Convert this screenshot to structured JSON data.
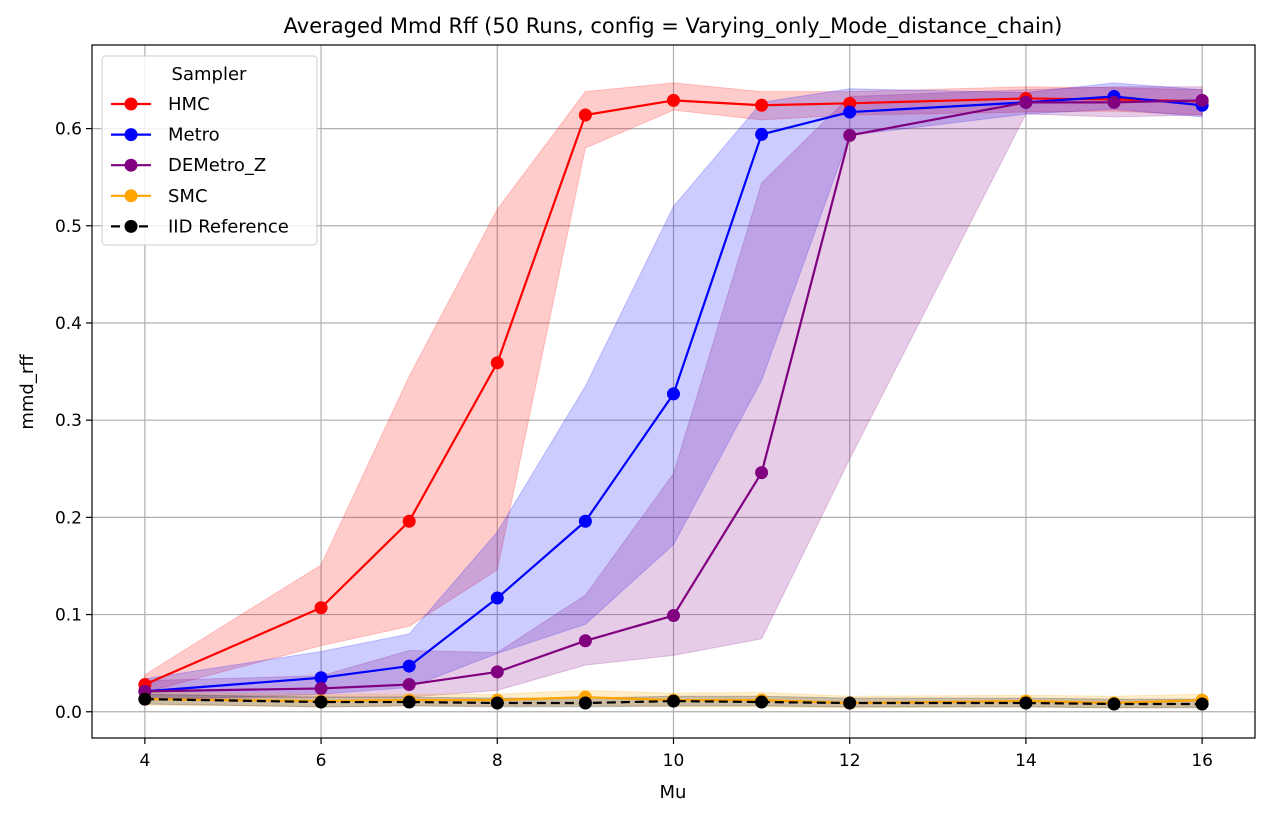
{
  "chart_data": {
    "type": "line",
    "title": "Averaged Mmd Rff (50 Runs, config = Varying_only_Mode_distance_chain)",
    "xlabel": "Mu",
    "ylabel": "mmd_rff",
    "xlim": [
      3.4,
      16.6
    ],
    "ylim": [
      -0.027,
      0.686
    ],
    "xticks": [
      4,
      6,
      8,
      10,
      12,
      14,
      16
    ],
    "yticks": [
      0.0,
      0.1,
      0.2,
      0.3,
      0.4,
      0.5,
      0.6
    ],
    "grid": true,
    "legend": {
      "title": "Sampler",
      "placement": "top-left"
    },
    "x": [
      4,
      6,
      7,
      8,
      9,
      10,
      11,
      12,
      14,
      15,
      16
    ],
    "series": [
      {
        "name": "HMC",
        "color": "#ff0000",
        "linestyle": "solid",
        "values": [
          0.028,
          0.107,
          0.196,
          0.359,
          0.614,
          0.629,
          0.624,
          0.626,
          0.631,
          0.63,
          0.628
        ],
        "band_low": [
          0.02,
          0.068,
          0.088,
          0.146,
          0.58,
          0.619,
          0.609,
          0.614,
          0.617,
          0.618,
          0.614
        ],
        "band_high": [
          0.038,
          0.151,
          0.345,
          0.517,
          0.638,
          0.647,
          0.638,
          0.638,
          0.643,
          0.642,
          0.64
        ]
      },
      {
        "name": "Metro",
        "color": "#0000ff",
        "linestyle": "solid",
        "values": [
          0.021,
          0.035,
          0.047,
          0.117,
          0.196,
          0.327,
          0.594,
          0.617,
          0.627,
          0.633,
          0.624
        ],
        "band_low": [
          0.012,
          0.018,
          0.025,
          0.06,
          0.09,
          0.172,
          0.341,
          0.593,
          0.615,
          0.62,
          0.612
        ],
        "band_high": [
          0.034,
          0.062,
          0.08,
          0.185,
          0.335,
          0.52,
          0.627,
          0.641,
          0.637,
          0.647,
          0.64
        ]
      },
      {
        "name": "DEMetro_Z",
        "color": "#800080",
        "linestyle": "solid",
        "values": [
          0.021,
          0.024,
          0.028,
          0.041,
          0.073,
          0.099,
          0.246,
          0.593,
          0.627,
          0.627,
          0.629
        ],
        "band_low": [
          0.013,
          0.015,
          0.015,
          0.022,
          0.048,
          0.058,
          0.075,
          0.26,
          0.615,
          0.612,
          0.614
        ],
        "band_high": [
          0.032,
          0.037,
          0.063,
          0.061,
          0.12,
          0.245,
          0.544,
          0.633,
          0.64,
          0.643,
          0.643
        ]
      },
      {
        "name": "SMC",
        "color": "#ffa500",
        "linestyle": "solid",
        "values": [
          0.013,
          0.011,
          0.012,
          0.012,
          0.015,
          0.012,
          0.012,
          0.009,
          0.011,
          0.009,
          0.012
        ],
        "band_low": [
          0.007,
          0.005,
          0.006,
          0.006,
          0.007,
          0.005,
          0.005,
          0.004,
          0.005,
          0.004,
          0.005
        ],
        "band_high": [
          0.02,
          0.018,
          0.018,
          0.018,
          0.022,
          0.019,
          0.02,
          0.016,
          0.017,
          0.016,
          0.018
        ]
      },
      {
        "name": "IID Reference",
        "color": "#000000",
        "linestyle": "dashed",
        "values": [
          0.013,
          0.01,
          0.01,
          0.009,
          0.009,
          0.011,
          0.01,
          0.009,
          0.009,
          0.008,
          0.008
        ],
        "band_low": [
          0.008,
          0.005,
          0.006,
          0.005,
          0.005,
          0.006,
          0.006,
          0.005,
          0.005,
          0.004,
          0.004
        ],
        "band_high": [
          0.018,
          0.015,
          0.015,
          0.014,
          0.014,
          0.016,
          0.016,
          0.014,
          0.014,
          0.013,
          0.013
        ]
      }
    ]
  }
}
